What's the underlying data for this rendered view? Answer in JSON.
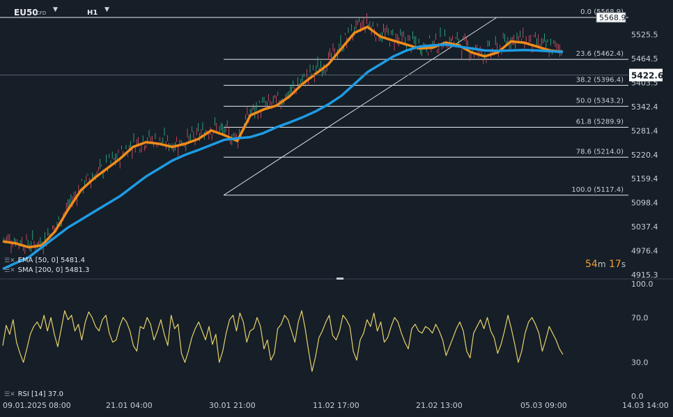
{
  "header": {
    "symbol": "EU50",
    "instrument_type": "CFD",
    "timeframe": "H1"
  },
  "chart_data": [
    {
      "type": "candlestick",
      "title": "EU50",
      "ylim": [
        4915.3,
        5568.9
      ],
      "y_ticks": [
        "5525.5",
        "5464.5",
        "5403.5",
        "5342.4",
        "5281.4",
        "5220.4",
        "5159.4",
        "5098.4",
        "5037.4",
        "4976.4",
        "4915.3"
      ],
      "x_ticks": [
        "09.01.2025",
        "08:00",
        "21.01  04:00",
        "30.01  21:00",
        "11.02  17:00",
        "21.02  13:00",
        "05.03  09:00",
        "14.03  14:00"
      ],
      "current_price": "5422.6",
      "high_marker": "5568.9",
      "grid": false,
      "series": [
        {
          "name": "EMA [50, 0]",
          "color": "#f08c1a",
          "last": "5481.4",
          "values": [
            5000,
            4995,
            4985,
            4990,
            5025,
            5080,
            5130,
            5160,
            5185,
            5210,
            5240,
            5252,
            5248,
            5240,
            5248,
            5260,
            5282,
            5270,
            5255,
            5320,
            5335,
            5345,
            5368,
            5400,
            5425,
            5450,
            5490,
            5530,
            5545,
            5520,
            5510,
            5500,
            5490,
            5492,
            5505,
            5498,
            5480,
            5470,
            5480,
            5508,
            5505,
            5495,
            5485,
            5481.4
          ]
        },
        {
          "name": "SMA [200, 0]",
          "color": "#1e9be3",
          "last": "5481.3",
          "values": [
            4930,
            4945,
            4960,
            4985,
            5010,
            5035,
            5055,
            5075,
            5095,
            5115,
            5140,
            5165,
            5185,
            5205,
            5220,
            5232,
            5245,
            5258,
            5262,
            5265,
            5275,
            5290,
            5302,
            5315,
            5330,
            5348,
            5370,
            5400,
            5430,
            5450,
            5470,
            5485,
            5495,
            5498,
            5500,
            5495,
            5490,
            5485,
            5484,
            5485,
            5486,
            5485,
            5483,
            5481.3
          ]
        }
      ],
      "fibonacci": {
        "swing_low": 5117.4,
        "swing_high": 5568.9,
        "levels": [
          {
            "label": "0.0 (5568.9)",
            "value": 5568.9
          },
          {
            "label": "23.6 (5462.4)",
            "value": 5462.4
          },
          {
            "label": "38.2 (5396.4)",
            "value": 5396.4
          },
          {
            "label": "50.0 (5343.2)",
            "value": 5343.2
          },
          {
            "label": "61.8 (5289.9)",
            "value": 5289.9
          },
          {
            "label": "78.6 (5214.0)",
            "value": 5214.0
          },
          {
            "label": "100.0 (5117.4)",
            "value": 5117.4
          }
        ]
      }
    },
    {
      "type": "line",
      "title": "RSI [14]",
      "ylim": [
        0,
        100
      ],
      "y_ticks": [
        "100.0",
        "70.0",
        "30.0",
        "0.0"
      ],
      "series": [
        {
          "name": "RSI [14]",
          "color": "#e6d36c",
          "last": "37.0",
          "values": [
            45,
            63,
            55,
            68,
            48,
            38,
            30,
            42,
            55,
            62,
            66,
            60,
            72,
            58,
            70,
            55,
            44,
            60,
            76,
            68,
            72,
            58,
            64,
            50,
            66,
            75,
            70,
            62,
            58,
            68,
            72,
            56,
            48,
            50,
            62,
            70,
            66,
            58,
            45,
            40,
            62,
            60,
            70,
            64,
            50,
            58,
            68,
            55,
            45,
            72,
            60,
            64,
            38,
            30,
            40,
            52,
            60,
            66,
            58,
            50,
            62,
            46,
            55,
            30,
            40,
            56,
            68,
            72,
            58,
            74,
            66,
            48,
            58,
            60,
            70,
            62,
            42,
            50,
            32,
            38,
            60,
            64,
            72,
            68,
            58,
            48,
            66,
            76,
            60,
            40,
            22,
            35,
            52,
            58,
            66,
            72,
            54,
            50,
            58,
            72,
            68,
            62,
            40,
            32,
            50,
            56,
            68,
            62,
            74,
            58,
            66,
            48,
            52,
            62,
            70,
            66,
            56,
            48,
            42,
            60,
            64,
            58,
            56,
            62,
            60,
            56,
            64,
            58,
            50,
            36,
            44,
            52,
            60,
            66,
            58,
            40,
            34,
            56,
            62,
            68,
            60,
            70,
            58,
            52,
            38,
            46,
            58,
            72,
            60,
            46,
            30,
            40,
            56,
            66,
            70,
            64,
            56,
            40,
            50,
            62,
            56,
            50,
            42,
            37
          ]
        }
      ]
    }
  ],
  "countdown": {
    "minutes": "54",
    "m_label": "m",
    "seconds": "17",
    "s_label": "s"
  }
}
